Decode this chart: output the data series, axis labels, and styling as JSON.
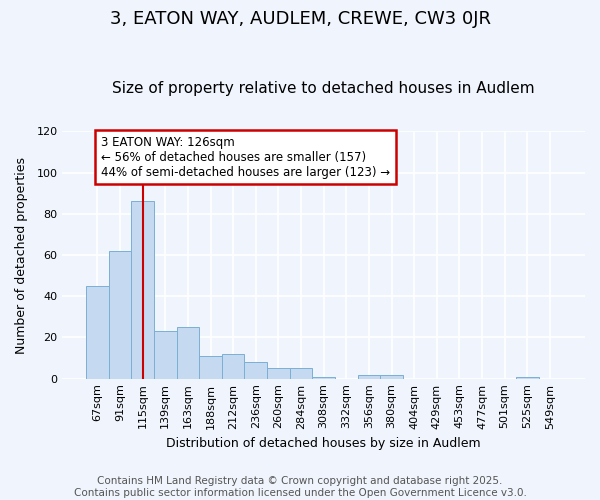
{
  "title1": "3, EATON WAY, AUDLEM, CREWE, CW3 0JR",
  "title2": "Size of property relative to detached houses in Audlem",
  "xlabel": "Distribution of detached houses by size in Audlem",
  "ylabel": "Number of detached properties",
  "footnote": "Contains HM Land Registry data © Crown copyright and database right 2025.\nContains public sector information licensed under the Open Government Licence v3.0.",
  "categories": [
    "67sqm",
    "91sqm",
    "115sqm",
    "139sqm",
    "163sqm",
    "188sqm",
    "212sqm",
    "236sqm",
    "260sqm",
    "284sqm",
    "308sqm",
    "332sqm",
    "356sqm",
    "380sqm",
    "404sqm",
    "429sqm",
    "453sqm",
    "477sqm",
    "501sqm",
    "525sqm",
    "549sqm"
  ],
  "values": [
    45,
    62,
    86,
    23,
    25,
    11,
    12,
    8,
    5,
    5,
    1,
    0,
    2,
    2,
    0,
    0,
    0,
    0,
    0,
    1,
    0
  ],
  "bar_color": "#c5d9f0",
  "bar_edge_color": "#7bafd4",
  "vline_x_index": 2,
  "vline_color": "#cc0000",
  "annotation_text": "3 EATON WAY: 126sqm\n← 56% of detached houses are smaller (157)\n44% of semi-detached houses are larger (123) →",
  "annotation_box_edgecolor": "#cc0000",
  "annotation_text_color": "#000000",
  "ylim": [
    0,
    120
  ],
  "yticks": [
    0,
    20,
    40,
    60,
    80,
    100,
    120
  ],
  "fig_bg_color": "#f0f4fc",
  "plot_bg_color": "#f0f4fc",
  "grid_color": "#ffffff",
  "title1_fontsize": 13,
  "title2_fontsize": 11,
  "axis_label_fontsize": 9,
  "tick_fontsize": 8,
  "footnote_fontsize": 7.5
}
